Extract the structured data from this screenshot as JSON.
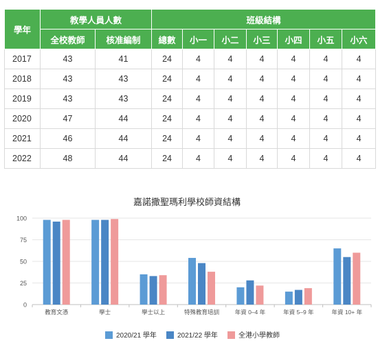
{
  "table": {
    "header_year": "學年",
    "header_staff": "教學人員人數",
    "header_class": "班級結構",
    "sub_headers": [
      "全校教師",
      "核准編制",
      "總數",
      "小一",
      "小二",
      "小三",
      "小四",
      "小五",
      "小六"
    ],
    "rows": [
      [
        "2017",
        "43",
        "41",
        "24",
        "4",
        "4",
        "4",
        "4",
        "4",
        "4"
      ],
      [
        "2018",
        "43",
        "43",
        "24",
        "4",
        "4",
        "4",
        "4",
        "4",
        "4"
      ],
      [
        "2019",
        "43",
        "43",
        "24",
        "4",
        "4",
        "4",
        "4",
        "4",
        "4"
      ],
      [
        "2020",
        "47",
        "44",
        "24",
        "4",
        "4",
        "4",
        "4",
        "4",
        "4"
      ],
      [
        "2021",
        "46",
        "44",
        "24",
        "4",
        "4",
        "4",
        "4",
        "4",
        "4"
      ],
      [
        "2022",
        "48",
        "44",
        "24",
        "4",
        "4",
        "4",
        "4",
        "4",
        "4"
      ]
    ]
  },
  "chart_data": {
    "type": "bar",
    "title": "嘉諾撒聖瑪利學校師資結構",
    "categories": [
      "教育文憑",
      "學士",
      "學士以上",
      "特殊教育培訓",
      "年資 0–4 年",
      "年資 5–9 年",
      "年資 10+ 年"
    ],
    "series": [
      {
        "name": "2020/21 學年",
        "color": "#5b9bd5",
        "values": [
          98,
          98,
          35,
          54,
          20,
          15,
          65
        ]
      },
      {
        "name": "2021/22 學年",
        "color": "#4a86c5",
        "values": [
          96,
          98,
          33,
          48,
          28,
          17,
          55
        ]
      },
      {
        "name": "全港小學教師",
        "color": "#ef9a9a",
        "values": [
          98,
          99,
          34,
          38,
          22,
          19,
          60
        ]
      }
    ],
    "ylim": [
      0,
      100
    ],
    "yticks": [
      0,
      25,
      50,
      75,
      100
    ],
    "grid": true,
    "legend_position": "bottom"
  }
}
